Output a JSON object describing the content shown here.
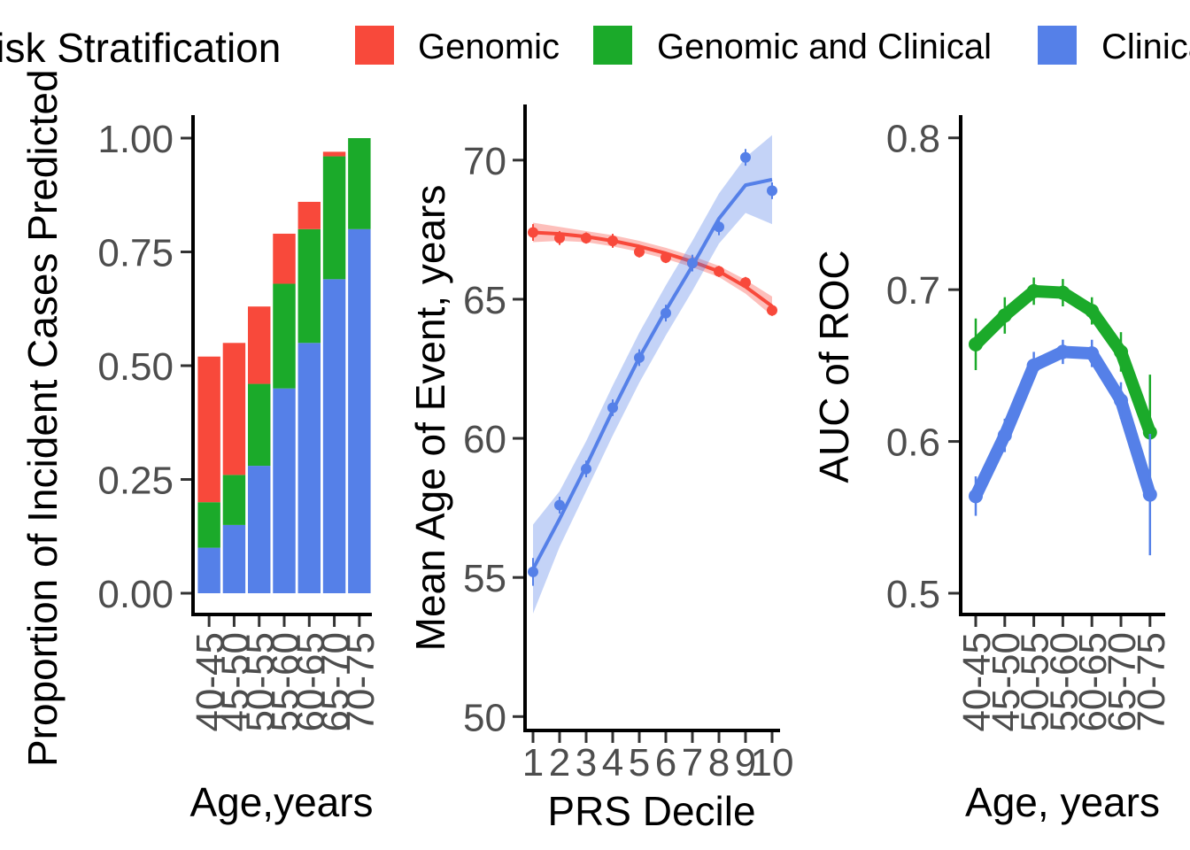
{
  "legend": {
    "title": "Risk Stratification",
    "items": [
      {
        "label": "Genomic",
        "color": "#F8493B"
      },
      {
        "label": "Genomic and Clinical",
        "color": "#1BAA2A"
      },
      {
        "label": "Clinical",
        "color": "#5580E8"
      }
    ]
  },
  "chart_data": [
    {
      "type": "bar",
      "stacked": true,
      "xlabel": "Age,years",
      "ylabel": "Proportion of Incident Cases Predicted",
      "ylim": [
        0,
        1
      ],
      "yticks": [
        "0.00",
        "0.25",
        "0.50",
        "0.75",
        "1.00"
      ],
      "categories": [
        "40-45",
        "45-50",
        "50-55",
        "55-60",
        "60-65",
        "65-70",
        "70-75"
      ],
      "series": [
        {
          "name": "Clinical",
          "color": "#5580E8",
          "values": [
            0.1,
            0.15,
            0.28,
            0.45,
            0.55,
            0.69,
            0.8
          ]
        },
        {
          "name": "Genomic and Clinical",
          "color": "#1BAA2A",
          "values": [
            0.1,
            0.11,
            0.18,
            0.23,
            0.25,
            0.27,
            0.2
          ]
        },
        {
          "name": "Genomic",
          "color": "#F8493B",
          "values": [
            0.32,
            0.29,
            0.17,
            0.11,
            0.06,
            0.01,
            0.0
          ]
        }
      ]
    },
    {
      "type": "scatter",
      "smooth": true,
      "xlabel": "PRS Decile",
      "ylabel": "Mean Age of Event, years",
      "ylim": [
        49.5,
        72
      ],
      "xlim": [
        0.7,
        10.3
      ],
      "yticks": [
        "50",
        "55",
        "60",
        "65",
        "70"
      ],
      "xticks": [
        "1",
        "2",
        "3",
        "4",
        "5",
        "6",
        "7",
        "8",
        "9",
        "10"
      ],
      "series": [
        {
          "name": "Genomic",
          "color": "#F8493B",
          "x": [
            1,
            2,
            3,
            4,
            5,
            6,
            7,
            8,
            9,
            10
          ],
          "y": [
            67.4,
            67.2,
            67.2,
            67.1,
            66.7,
            66.5,
            66.3,
            66.0,
            65.6,
            64.6
          ],
          "err": [
            0.3,
            0.25,
            0.2,
            0.25,
            0.2,
            0.2,
            0.2,
            0.2,
            0.2,
            0.2
          ],
          "fit": [
            67.4,
            67.35,
            67.25,
            67.1,
            66.9,
            66.65,
            66.35,
            66.0,
            65.45,
            64.75
          ],
          "band": [
            0.35,
            0.25,
            0.2,
            0.2,
            0.2,
            0.2,
            0.2,
            0.2,
            0.25,
            0.35
          ]
        },
        {
          "name": "Clinical",
          "color": "#5580E8",
          "x": [
            1,
            2,
            3,
            4,
            5,
            6,
            7,
            8,
            9,
            10
          ],
          "y": [
            55.2,
            57.6,
            58.9,
            61.1,
            62.9,
            64.5,
            66.3,
            67.6,
            70.1,
            68.9
          ],
          "err": [
            0.5,
            0.3,
            0.3,
            0.3,
            0.3,
            0.3,
            0.3,
            0.3,
            0.3,
            0.3
          ],
          "fit": [
            55.3,
            57.1,
            59.0,
            61.0,
            62.9,
            64.6,
            66.2,
            67.9,
            69.1,
            69.3
          ],
          "band": [
            1.6,
            1.0,
            0.9,
            0.9,
            0.9,
            0.9,
            0.9,
            0.9,
            1.0,
            1.6
          ]
        }
      ]
    },
    {
      "type": "line",
      "xlabel": "Age, years",
      "ylabel": "AUC of ROC",
      "ylim": [
        0.486,
        0.815
      ],
      "yticks": [
        "0.5",
        "0.6",
        "0.7",
        "0.8"
      ],
      "categories": [
        "40-45",
        "45-50",
        "50-55",
        "55-60",
        "60-65",
        "65-70",
        "70-75"
      ],
      "series": [
        {
          "name": "Genomic and Clinical",
          "color": "#1BAA2A",
          "values": [
            0.664,
            0.683,
            0.699,
            0.698,
            0.686,
            0.659,
            0.606
          ],
          "err": [
            0.017,
            0.012,
            0.009,
            0.009,
            0.009,
            0.013,
            0.038
          ]
        },
        {
          "name": "Clinical",
          "color": "#5580E8",
          "values": [
            0.564,
            0.604,
            0.65,
            0.659,
            0.658,
            0.627,
            0.565
          ],
          "err": [
            0.013,
            0.011,
            0.009,
            0.008,
            0.009,
            0.012,
            0.04
          ]
        }
      ]
    }
  ]
}
